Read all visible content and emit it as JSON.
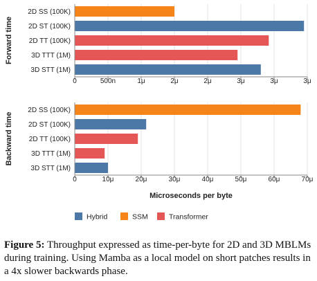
{
  "chart_data": [
    {
      "type": "bar",
      "orientation": "horizontal",
      "title": "",
      "ylabel": "Forward time",
      "xlabel": "",
      "categories": [
        "2D SS (100K)",
        "2D ST (100K)",
        "2D TT (100K)",
        "3D TTT (1M)",
        "3D STT (1M)"
      ],
      "groups": [
        "SSM",
        "Hybrid",
        "Transformer",
        "Transformer",
        "Hybrid"
      ],
      "values": [
        1.5e-06,
        3.45e-06,
        2.92e-06,
        2.45e-06,
        2.8e-06
      ],
      "xlim": [
        0,
        3.5e-06
      ],
      "xticks": [
        0,
        5e-07,
        1e-06,
        1.5e-06,
        2e-06,
        2.5e-06,
        3e-06,
        3.5e-06
      ],
      "xtick_labels": [
        "0",
        "500n",
        "1μ",
        "2μ",
        "2μ",
        "3μ",
        "3μ",
        "3μ"
      ],
      "grid": true
    },
    {
      "type": "bar",
      "orientation": "horizontal",
      "title": "",
      "ylabel": "Backward time",
      "xlabel": "Microseconds per byte",
      "categories": [
        "2D SS (100K)",
        "2D ST (100K)",
        "2D TT (100K)",
        "3D TTT (1M)",
        "3D STT (1M)"
      ],
      "groups": [
        "SSM",
        "Hybrid",
        "Transformer",
        "Transformer",
        "Hybrid"
      ],
      "values": [
        6.8e-05,
        2.15e-05,
        1.9e-05,
        9e-06,
        1e-05
      ],
      "xlim": [
        0,
        7e-05
      ],
      "xticks": [
        0,
        1e-05,
        2e-05,
        3e-05,
        4e-05,
        5e-05,
        6e-05,
        7e-05
      ],
      "xtick_labels": [
        "0",
        "10μ",
        "20μ",
        "30μ",
        "40μ",
        "50μ",
        "60μ",
        "70μ"
      ],
      "grid": true
    }
  ],
  "legend": {
    "placement": "bottom",
    "items": [
      {
        "name": "Hybrid",
        "color": "#4c78a8"
      },
      {
        "name": "SSM",
        "color": "#f58518"
      },
      {
        "name": "Transformer",
        "color": "#e45756"
      }
    ]
  },
  "caption": {
    "label": "Figure 5:",
    "text": " Throughput expressed as time-per-byte for 2D and 3D MBLMs during training. Using Mamba as a local model on short patches results in a 4x slower backwards phase."
  }
}
